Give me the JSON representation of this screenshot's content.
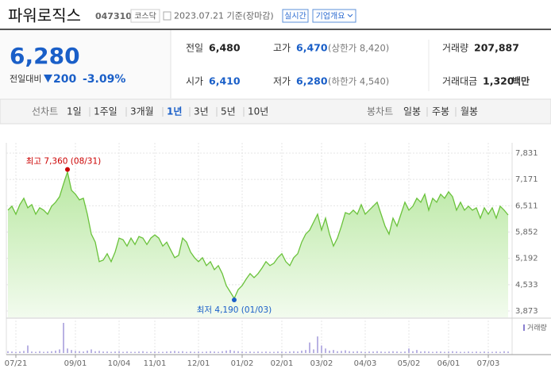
{
  "header": {
    "name": "파워로직스",
    "code": "047310",
    "market": "코스닥",
    "date": "2023.07.21 기준(장마감)",
    "realtime": "실시간",
    "company_info": "기업개요"
  },
  "quote": {
    "price": "6,280",
    "change_label": "전일대비",
    "change": "200",
    "change_pct": "-3.09%"
  },
  "stats": [
    {
      "label": "전일",
      "value": "6,480"
    },
    {
      "label": "고가",
      "value": "6,470",
      "extra": "(상한가 8,420)"
    },
    {
      "label": "거래량",
      "value": "207,887"
    },
    {
      "label": "시가",
      "value": "6,410"
    },
    {
      "label": "저가",
      "value": "6,280",
      "extra": "(하한가 4,540)"
    },
    {
      "label": "거래대금",
      "value": "1,320",
      "unit": "백만"
    }
  ],
  "tabs": {
    "line_label": "선차트",
    "line_periods": [
      "1일",
      "1주일",
      "3개월",
      "1년",
      "3년",
      "5년",
      "10년"
    ],
    "active_period": 3,
    "candle_label": "봉차트",
    "candle_periods": [
      "일봉",
      "주봉",
      "월봉"
    ]
  },
  "chart_data": {
    "type": "area",
    "color": "#6ac23b",
    "values": [
      6400,
      6500,
      6300,
      6540,
      6700,
      6460,
      6540,
      6300,
      6460,
      6400,
      6300,
      6500,
      6600,
      6740,
      7060,
      7360,
      6900,
      6800,
      6660,
      6700,
      6300,
      5800,
      5600,
      5110,
      5150,
      5310,
      5110,
      5350,
      5700,
      5660,
      5500,
      5700,
      5540,
      5740,
      5700,
      5540,
      5700,
      5780,
      5700,
      5500,
      5600,
      5400,
      5210,
      5270,
      5700,
      5600,
      5350,
      5210,
      5110,
      5210,
      5010,
      5110,
      4910,
      5010,
      4810,
      4510,
      4350,
      4190,
      4410,
      4510,
      4670,
      4810,
      4710,
      4810,
      4950,
      5110,
      5010,
      5070,
      5210,
      5310,
      5110,
      5010,
      5210,
      5310,
      5600,
      5800,
      5900,
      6100,
      6300,
      5900,
      6200,
      5800,
      5500,
      5700,
      6000,
      6340,
      6300,
      6400,
      6300,
      6540,
      6300,
      6400,
      6500,
      6600,
      6300,
      6000,
      5800,
      6200,
      6000,
      6300,
      6600,
      6400,
      6500,
      6700,
      6600,
      6800,
      6400,
      6700,
      6600,
      6800,
      6700,
      6860,
      6740,
      6400,
      6600,
      6400,
      6500,
      6400,
      6460,
      6200,
      6460,
      6300,
      6460,
      6200,
      6500,
      6400,
      6280
    ],
    "volume": {
      "name": "거래량",
      "color": "#8a7fd0",
      "values": [
        6,
        5,
        4,
        5,
        7,
        25,
        5,
        4,
        6,
        4,
        5,
        6,
        8,
        12,
        100,
        15,
        10,
        7,
        6,
        5,
        8,
        12,
        6,
        7,
        5,
        5,
        4,
        5,
        6,
        4,
        5,
        4,
        4,
        5,
        6,
        4,
        4,
        5,
        4,
        4,
        5,
        6,
        7,
        5,
        6,
        4,
        5,
        4,
        5,
        4,
        5,
        6,
        5,
        4,
        6,
        8,
        10,
        7,
        6,
        5,
        4,
        5,
        4,
        5,
        4,
        5,
        4,
        4,
        5,
        5,
        4,
        5,
        6,
        5,
        8,
        10,
        35,
        12,
        55,
        25,
        15,
        8,
        10,
        6,
        7,
        9,
        6,
        5,
        6,
        5,
        4,
        5,
        5,
        6,
        5,
        4,
        5,
        6,
        5,
        4,
        5,
        15,
        6,
        10,
        5,
        6,
        5,
        4,
        5,
        5,
        4,
        5,
        6,
        5,
        4,
        4,
        5,
        4,
        5,
        4,
        5,
        4,
        4,
        5,
        4,
        6,
        5
      ]
    },
    "ylim": [
      3873,
      7831
    ],
    "yticks": [
      {
        "value": 7831,
        "label": "7,831"
      },
      {
        "value": 7171,
        "label": "7,171"
      },
      {
        "value": 6511,
        "label": "6,511"
      },
      {
        "value": 5852,
        "label": "5,852"
      },
      {
        "value": 5192,
        "label": "5,192"
      },
      {
        "value": 4533,
        "label": "4,533"
      },
      {
        "value": 3873,
        "label": "3,873"
      }
    ],
    "xlim": [
      0,
      126
    ],
    "xticks": [
      {
        "value": 2,
        "label": "07/21"
      },
      {
        "value": 17,
        "label": "09/01"
      },
      {
        "value": 28,
        "label": "10/04"
      },
      {
        "value": 37,
        "label": "11/01"
      },
      {
        "value": 48,
        "label": "12/01"
      },
      {
        "value": 59,
        "label": "01/02"
      },
      {
        "value": 69,
        "label": "02/01"
      },
      {
        "value": 79,
        "label": "03/02"
      },
      {
        "value": 90,
        "label": "04/03"
      },
      {
        "value": 101,
        "label": "05/02"
      },
      {
        "value": 111,
        "label": "06/01"
      },
      {
        "value": 121,
        "label": "07/03"
      }
    ],
    "grid": true,
    "annotations": [
      {
        "text": "최고 7,360 (08/31)",
        "index": 15,
        "color": "#cc0000",
        "side": "above"
      },
      {
        "text": "최저 4,190 (01/03)",
        "index": 57,
        "color": "#1a5fc8",
        "side": "below"
      }
    ]
  }
}
